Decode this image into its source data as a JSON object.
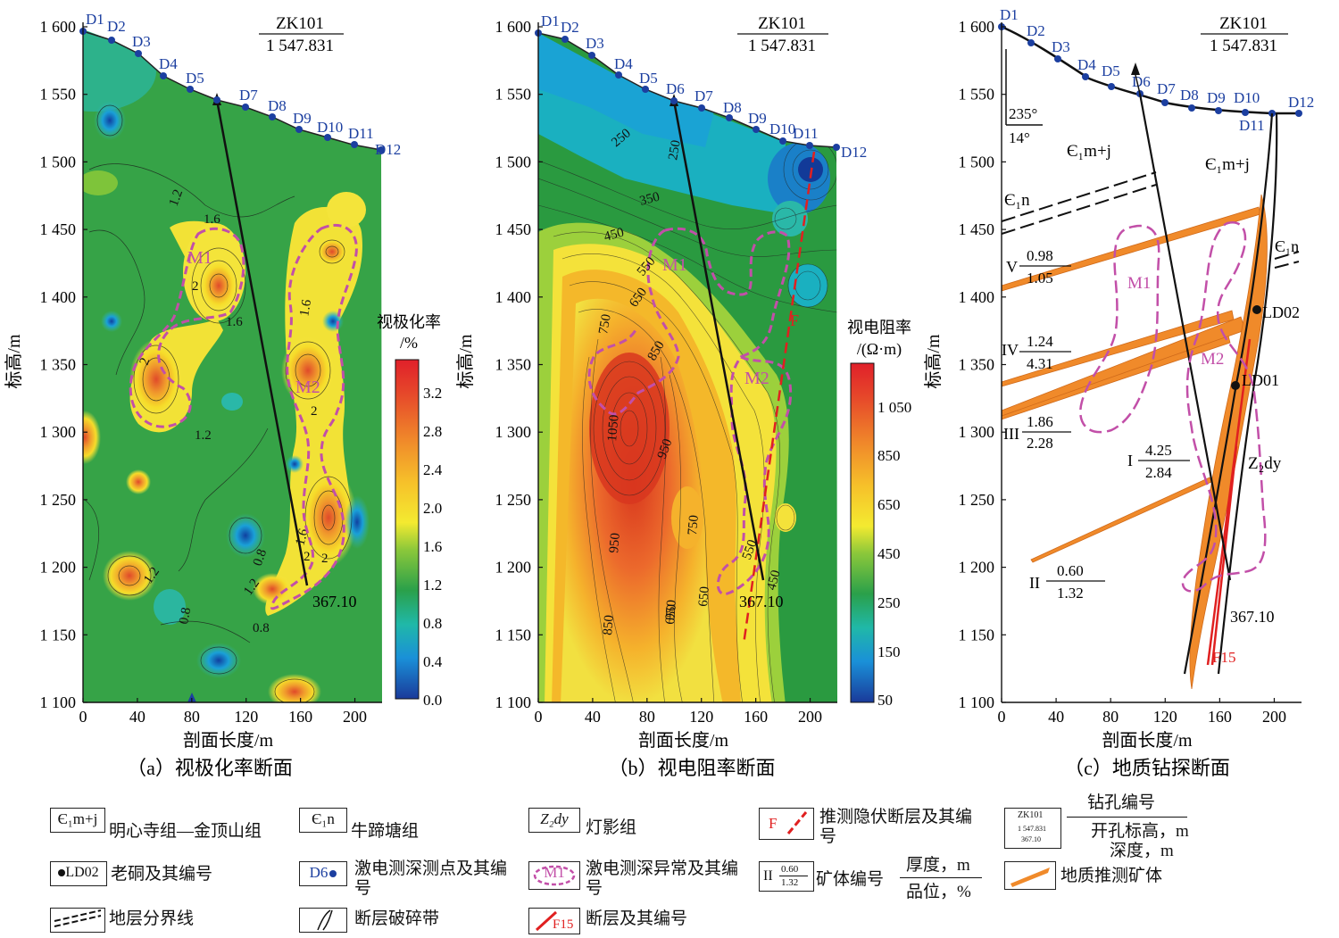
{
  "panels": {
    "a": {
      "caption": "（a）视极化率断面",
      "colorbar_title": [
        "视极化率",
        "/%"
      ],
      "colorbar_ticks": [
        "3.2",
        "2.8",
        "2.4",
        "2.0",
        "1.6",
        "1.2",
        "0.8",
        "0.4",
        "0.0"
      ],
      "contour_labels": [
        "1.2",
        "1.6",
        "2",
        "1.6",
        "2",
        "1.6",
        "2",
        "2",
        "1.2",
        "1.2",
        "0.8",
        "1.2",
        "0.8",
        "0.8",
        "1.6",
        "2"
      ],
      "anomalies": [
        "M1",
        "M2"
      ]
    },
    "b": {
      "caption": "（b）视电阻率断面",
      "colorbar_title": [
        "视电阻率",
        "/(Ω·m)"
      ],
      "colorbar_ticks": [
        "1 050",
        "850",
        "650",
        "450",
        "250",
        "150",
        "50"
      ],
      "contour_labels": [
        "250",
        "250",
        "350",
        "450",
        "550",
        "650",
        "750",
        "850",
        "1050",
        "950",
        "950",
        "750",
        "950",
        "850",
        "850",
        "650",
        "550",
        "450"
      ],
      "anomalies": [
        "M1",
        "M2"
      ],
      "fault_label": "F"
    },
    "c": {
      "caption": "（c）地质钻探断面",
      "strat_labels": [
        "Є₁m+j",
        "Є₁m+j",
        "Є₁n",
        "Є₁n",
        "Z₂dy"
      ],
      "orientation": [
        "235°",
        "14°"
      ],
      "orebodies": [
        {
          "id": "V",
          "thickness": "0.98",
          "grade": "1.05"
        },
        {
          "id": "IV",
          "thickness": "1.24",
          "grade": "4.31"
        },
        {
          "id": "III",
          "thickness": "1.86",
          "grade": "2.28"
        },
        {
          "id": "I",
          "thickness": "4.25",
          "grade": "2.84"
        },
        {
          "id": "II",
          "thickness": "0.60",
          "grade": "1.32"
        }
      ],
      "old_pits": [
        "LD02",
        "LD01"
      ],
      "fault_label": "F15",
      "anomalies": [
        "M1",
        "M2"
      ]
    }
  },
  "drill": {
    "id": "ZK101",
    "collar": "1 547.831",
    "depth": "367.10"
  },
  "stations": [
    "D1",
    "D2",
    "D3",
    "D4",
    "D5",
    "D6",
    "D7",
    "D8",
    "D9",
    "D10",
    "D11",
    "D12"
  ],
  "axes": {
    "ylabel": "标高/m",
    "xlabel": "剖面长度/m",
    "y_ticks": [
      "1 600",
      "1 550",
      "1 500",
      "1 450",
      "1 400",
      "1 350",
      "1 300",
      "1 250",
      "1 200",
      "1 150",
      "1 100"
    ],
    "x_ticks": [
      "0",
      "40",
      "80",
      "120",
      "160",
      "200"
    ]
  },
  "legend": [
    {
      "symbol": "Є₁m+j",
      "text": "明心寺组—金顶山组"
    },
    {
      "symbol": "Є₁n",
      "text": "牛蹄塘组"
    },
    {
      "symbol": "Z₂dy",
      "text": "灯影组"
    },
    {
      "symbol": "F",
      "text": "推测隐伏断层及其编号"
    },
    {
      "symbol": "ZK101",
      "text": "钻孔编号",
      "text2": "开孔标高，m",
      "text3": "深度，m",
      "sub1": "1 547.831",
      "sub2": "367.10"
    },
    {
      "symbol": "LD02",
      "text": "老硐及其编号"
    },
    {
      "symbol": "D6",
      "text": "激电测深测点及其编号"
    },
    {
      "symbol": "M1",
      "text": "激电测深异常及其编号"
    },
    {
      "symbol": "II",
      "text": "矿体编号",
      "frac_top": "0.60",
      "frac_bot": "1.32",
      "text2": "厚度，m",
      "text3": "品位，%"
    },
    {
      "symbol": "",
      "text": "地质推测矿体"
    },
    {
      "symbol": "",
      "text": "地层分界线"
    },
    {
      "symbol": "",
      "text": "断层破碎带"
    },
    {
      "symbol": "F15",
      "text": "断层及其编号"
    }
  ],
  "colors": {
    "anomaly": "#c24fa8",
    "fault": "#e02020",
    "ore": "#f08a2a",
    "station": "#1c3fa0"
  }
}
